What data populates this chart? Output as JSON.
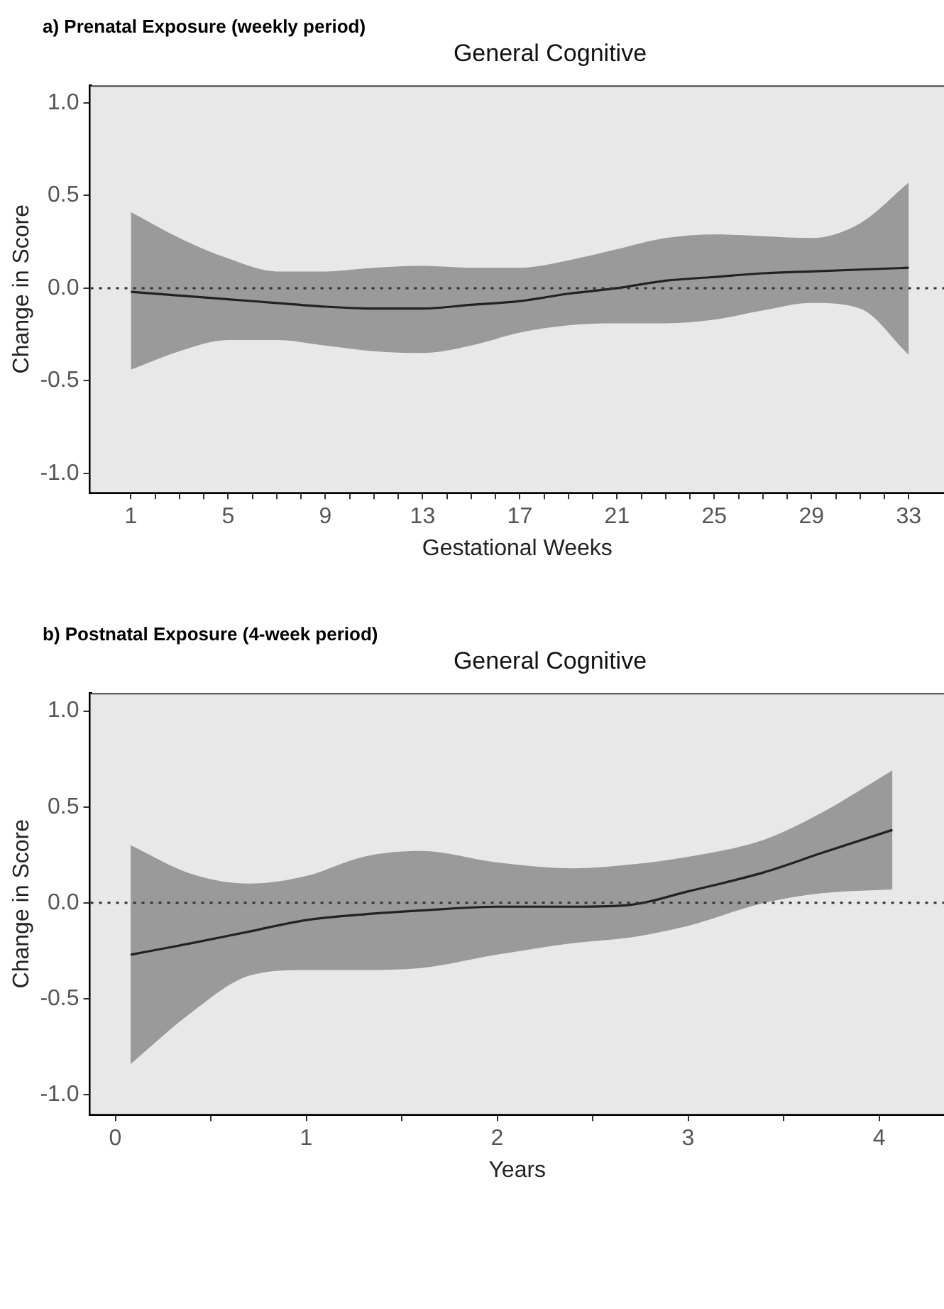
{
  "chart_data": [
    {
      "type": "line",
      "title": "a) Prenatal Exposure (weekly period)",
      "subtitle": "General Cognitive",
      "xlabel": "Gestational Weeks",
      "ylabel": "Change in Score",
      "x": [
        1,
        3,
        5,
        7,
        9,
        11,
        13,
        15,
        17,
        19,
        21,
        23,
        25,
        27,
        29,
        31,
        33
      ],
      "series": [
        {
          "color": "#222222",
          "values": [
            -0.02,
            -0.04,
            -0.06,
            -0.08,
            -0.1,
            -0.11,
            -0.11,
            -0.09,
            -0.07,
            -0.03,
            0.0,
            0.04,
            0.06,
            0.08,
            0.09,
            0.1,
            0.11
          ],
          "lower": [
            -0.44,
            -0.34,
            -0.28,
            -0.28,
            -0.31,
            -0.34,
            -0.35,
            -0.31,
            -0.24,
            -0.2,
            -0.19,
            -0.19,
            -0.17,
            -0.12,
            -0.08,
            -0.11,
            -0.36
          ],
          "upper": [
            0.41,
            0.27,
            0.16,
            0.09,
            0.09,
            0.11,
            0.12,
            0.11,
            0.11,
            0.15,
            0.21,
            0.27,
            0.29,
            0.28,
            0.27,
            0.35,
            0.57
          ]
        }
      ],
      "xlim": [
        -0.66,
        34.45
      ],
      "ylim": [
        -1.1,
        1.09
      ],
      "xticks": [
        1,
        {
          "value": 2,
          "label": null
        },
        {
          "value": 3,
          "label": null
        },
        {
          "value": 4,
          "label": null
        },
        5,
        {
          "value": 6,
          "label": null
        },
        {
          "value": 7,
          "label": null
        },
        {
          "value": 8,
          "label": null
        },
        9,
        {
          "value": 10,
          "label": null
        },
        {
          "value": 11,
          "label": null
        },
        {
          "value": 12,
          "label": null
        },
        13,
        {
          "value": 14,
          "label": null
        },
        {
          "value": 15,
          "label": null
        },
        {
          "value": 16,
          "label": null
        },
        17,
        {
          "value": 18,
          "label": null
        },
        {
          "value": 19,
          "label": null
        },
        {
          "value": 20,
          "label": null
        },
        21,
        {
          "value": 22,
          "label": null
        },
        {
          "value": 23,
          "label": null
        },
        {
          "value": 24,
          "label": null
        },
        25,
        {
          "value": 26,
          "label": null
        },
        {
          "value": 27,
          "label": null
        },
        {
          "value": 28,
          "label": null
        },
        29,
        {
          "value": 30,
          "label": null
        },
        {
          "value": 31,
          "label": null
        },
        {
          "value": 32,
          "label": null
        },
        33
      ],
      "yticks": [
        {
          "value": -1,
          "label": "-1.0"
        },
        {
          "value": -0.5,
          "label": "-0.5"
        },
        {
          "value": 0,
          "label": "0.0"
        },
        {
          "value": 0.5,
          "label": "0.5"
        },
        {
          "value": 1,
          "label": "1.0"
        }
      ],
      "ref_lines": [
        {
          "axis": "y",
          "value": 0,
          "line_style": "dotted",
          "color": "#333333"
        }
      ],
      "marker": "none"
    },
    {
      "type": "line",
      "title": "b) Postnatal Exposure (4-week period)",
      "subtitle": "General Cognitive",
      "xlabel": "Years",
      "ylabel": "Change in Score",
      "x": [
        0.08,
        0.4,
        0.7,
        1,
        1.3,
        1.6,
        2,
        2.4,
        2.7,
        3,
        3.4,
        3.7,
        4.07
      ],
      "series": [
        {
          "color": "#222222",
          "values": [
            -0.27,
            -0.21,
            -0.15,
            -0.09,
            -0.06,
            -0.04,
            -0.02,
            -0.02,
            -0.01,
            0.06,
            0.16,
            0.26,
            0.38
          ],
          "lower": [
            -0.84,
            -0.57,
            -0.38,
            -0.35,
            -0.35,
            -0.34,
            -0.27,
            -0.21,
            -0.18,
            -0.12,
            0.0,
            0.05,
            0.07
          ],
          "upper": [
            0.3,
            0.15,
            0.1,
            0.14,
            0.24,
            0.27,
            0.21,
            0.18,
            0.2,
            0.24,
            0.33,
            0.47,
            0.69
          ]
        }
      ],
      "xlim": [
        -0.13,
        4.34
      ],
      "ylim": [
        -1.1,
        1.09
      ],
      "xticks": [
        0,
        {
          "value": 0.5,
          "label": null
        },
        1,
        {
          "value": 1.5,
          "label": null
        },
        2,
        {
          "value": 2.5,
          "label": null
        },
        3,
        {
          "value": 3.5,
          "label": null
        },
        4
      ],
      "yticks": [
        {
          "value": -1,
          "label": "-1.0"
        },
        {
          "value": -0.5,
          "label": "-0.5"
        },
        {
          "value": 0,
          "label": "0.0"
        },
        {
          "value": 0.5,
          "label": "0.5"
        },
        {
          "value": 1,
          "label": "1.0"
        }
      ],
      "ref_lines": [
        {
          "axis": "y",
          "value": 0,
          "line_style": "dotted",
          "color": "#333333"
        }
      ],
      "marker": "none"
    }
  ]
}
